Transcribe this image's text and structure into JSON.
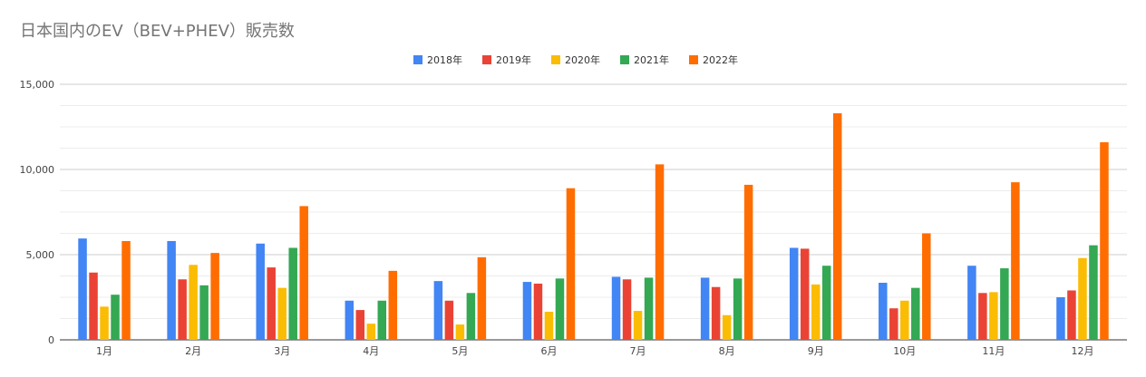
{
  "chart_data": {
    "type": "bar",
    "title": "日本国内のEV（BEV+PHEV）販売数",
    "xlabel": "",
    "ylabel": "",
    "ylim": [
      0,
      15000
    ],
    "yticks": [
      "0",
      "5,000",
      "10,000",
      "15,000"
    ],
    "grid": true,
    "legend": "top-center",
    "categories": [
      "1月",
      "2月",
      "3月",
      "4月",
      "5月",
      "6月",
      "7月",
      "8月",
      "9月",
      "10月",
      "11月",
      "12月"
    ],
    "series": [
      {
        "name": "2018年",
        "color": "#4285f4",
        "values": [
          5950,
          5800,
          5650,
          2300,
          3450,
          3400,
          3700,
          3650,
          5400,
          3350,
          4350,
          2500
        ]
      },
      {
        "name": "2019年",
        "color": "#ea4335",
        "values": [
          3950,
          3550,
          4250,
          1750,
          2300,
          3300,
          3550,
          3100,
          5350,
          1850,
          2750,
          2900
        ]
      },
      {
        "name": "2020年",
        "color": "#fbbc04",
        "values": [
          1950,
          4400,
          3050,
          950,
          900,
          1650,
          1700,
          1450,
          3250,
          2300,
          2800,
          4800
        ]
      },
      {
        "name": "2021年",
        "color": "#34a853",
        "values": [
          2650,
          3200,
          5400,
          2300,
          2750,
          3600,
          3650,
          3600,
          4350,
          3050,
          4200,
          5550
        ]
      },
      {
        "name": "2022年",
        "color": "#ff6d01",
        "values": [
          5800,
          5100,
          7850,
          4050,
          4850,
          8900,
          10300,
          9100,
          13300,
          6250,
          9250,
          11600
        ]
      }
    ]
  }
}
